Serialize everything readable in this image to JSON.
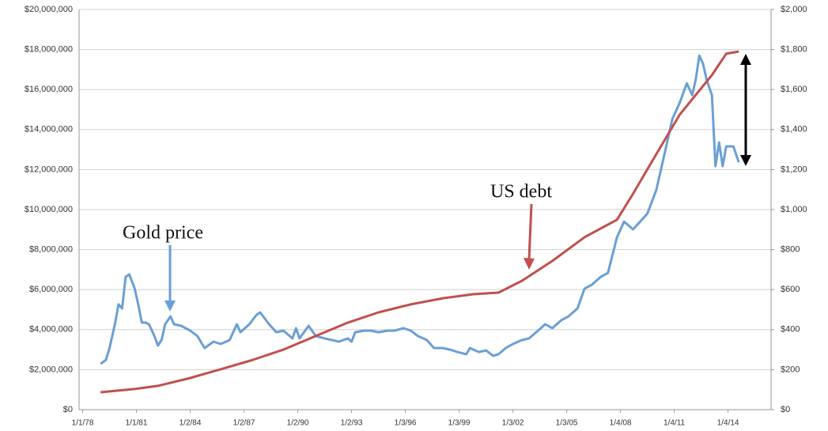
{
  "chart_data": {
    "type": "line",
    "annotations": [
      "Gold price",
      "US debt"
    ],
    "xlim": [
      1977.8,
      2016.4
    ],
    "xticks": [
      {
        "value": 1978,
        "label": "1/1/78"
      },
      {
        "value": 1981,
        "label": "1/1/81"
      },
      {
        "value": 1984,
        "label": "1/2/84"
      },
      {
        "value": 1987,
        "label": "1/2/87"
      },
      {
        "value": 1990,
        "label": "1/2/90"
      },
      {
        "value": 1993,
        "label": "1/2/93"
      },
      {
        "value": 1996,
        "label": "1/3/96"
      },
      {
        "value": 1999,
        "label": "1/3/99"
      },
      {
        "value": 2002,
        "label": "1/3/02"
      },
      {
        "value": 2005,
        "label": "1/3/05"
      },
      {
        "value": 2008,
        "label": "1/4/08"
      },
      {
        "value": 2011,
        "label": "1/4/11"
      },
      {
        "value": 2014,
        "label": "1/4/14"
      }
    ],
    "ylim": [
      0,
      20000000
    ],
    "yticks": [
      {
        "value": 0,
        "label": "$0"
      },
      {
        "value": 2000000,
        "label": "$2,000,000"
      },
      {
        "value": 4000000,
        "label": "$4,000,000"
      },
      {
        "value": 6000000,
        "label": "$6,000,000"
      },
      {
        "value": 8000000,
        "label": "$8,000,000"
      },
      {
        "value": 10000000,
        "label": "$10,000,000"
      },
      {
        "value": 12000000,
        "label": "$12,000,000"
      },
      {
        "value": 14000000,
        "label": "$14,000,000"
      },
      {
        "value": 16000000,
        "label": "$16,000,000"
      },
      {
        "value": 18000000,
        "label": "$18,000,000"
      },
      {
        "value": 20000000,
        "label": "$20,000,000"
      }
    ],
    "y2lim": [
      0,
      2000
    ],
    "y2ticks": [
      {
        "value": 0,
        "label": "$0"
      },
      {
        "value": 200,
        "label": "$200"
      },
      {
        "value": 400,
        "label": "$400"
      },
      {
        "value": 600,
        "label": "$600"
      },
      {
        "value": 800,
        "label": "$800"
      },
      {
        "value": 1000,
        "label": "$1,000"
      },
      {
        "value": 1200,
        "label": "$1,200"
      },
      {
        "value": 1400,
        "label": "$1,400"
      },
      {
        "value": 1600,
        "label": "$1,600"
      },
      {
        "value": 1800,
        "label": "$1,800"
      },
      {
        "value": 2000,
        "label": "$2,000"
      }
    ],
    "grid": true,
    "series": [
      {
        "color": "#6a9fd4",
        "axis": "y2",
        "x": [
          1979.0,
          1979.3,
          1979.5,
          1979.8,
          1980.0,
          1980.2,
          1980.4,
          1980.6,
          1980.9,
          1981.1,
          1981.3,
          1981.5,
          1981.7,
          1982.0,
          1982.2,
          1982.4,
          1982.6,
          1982.9,
          1983.1,
          1983.5,
          1984.0,
          1984.4,
          1984.8,
          1985.3,
          1985.7,
          1986.2,
          1986.6,
          1986.8,
          1987.3,
          1987.7,
          1987.9,
          1988.4,
          1988.8,
          1989.2,
          1989.7,
          1989.9,
          1990.1,
          1990.6,
          1991.0,
          1991.5,
          1991.9,
          1992.3,
          1992.8,
          1993.0,
          1993.2,
          1993.7,
          1994.1,
          1994.5,
          1995.0,
          1995.4,
          1995.9,
          1996.3,
          1996.7,
          1997.2,
          1997.6,
          1998.1,
          1998.5,
          1998.9,
          1999.4,
          1999.6,
          2000.1,
          2000.5,
          2000.9,
          2001.2,
          2001.6,
          2002.0,
          2002.5,
          2002.9,
          2003.4,
          2003.8,
          2004.2,
          2004.7,
          2005.1,
          2005.6,
          2006.0,
          2006.4,
          2006.9,
          2007.3,
          2007.8,
          2008.2,
          2008.7,
          2009.1,
          2009.5,
          2010.0,
          2010.4,
          2010.9,
          2011.3,
          2011.7,
          2012.0,
          2012.2,
          2012.4,
          2012.6,
          2012.8,
          2013.1,
          2013.3,
          2013.5,
          2013.7,
          2013.9,
          2014.3,
          2014.6
        ],
        "values": [
          229,
          249,
          308,
          427,
          526,
          506,
          664,
          676,
          605,
          526,
          435,
          435,
          427,
          368,
          320,
          348,
          427,
          466,
          427,
          419,
          395,
          368,
          308,
          340,
          328,
          348,
          427,
          387,
          427,
          474,
          486,
          427,
          387,
          395,
          356,
          407,
          356,
          419,
          368,
          356,
          348,
          340,
          356,
          340,
          387,
          395,
          395,
          387,
          395,
          395,
          407,
          395,
          368,
          348,
          308,
          308,
          300,
          288,
          277,
          308,
          288,
          296,
          269,
          277,
          308,
          328,
          348,
          356,
          395,
          427,
          407,
          447,
          466,
          506,
          605,
          624,
          664,
          683,
          861,
          940,
          901,
          940,
          980,
          1098,
          1256,
          1454,
          1533,
          1631,
          1572,
          1651,
          1770,
          1730,
          1651,
          1572,
          1217,
          1335,
          1217,
          1316,
          1316,
          1236
        ]
      },
      {
        "color": "#c0504d",
        "axis": "y",
        "x": [
          1979.0,
          1980.9,
          1982.2,
          1984.0,
          1985.7,
          1987.5,
          1989.2,
          1991.0,
          1992.8,
          1994.5,
          1996.3,
          1998.1,
          1999.8,
          2001.2,
          2002.5,
          2004.2,
          2006.0,
          2007.8,
          2008.7,
          2010.0,
          2011.3,
          2012.2,
          2013.1,
          2013.9,
          2014.6
        ],
        "values": [
          870000,
          1030000,
          1190000,
          1580000,
          2020000,
          2490000,
          3000000,
          3680000,
          4350000,
          4860000,
          5260000,
          5570000,
          5770000,
          5850000,
          6440000,
          7430000,
          8620000,
          9490000,
          10790000,
          12770000,
          14740000,
          15730000,
          16720000,
          17790000,
          17900000
        ]
      }
    ]
  }
}
